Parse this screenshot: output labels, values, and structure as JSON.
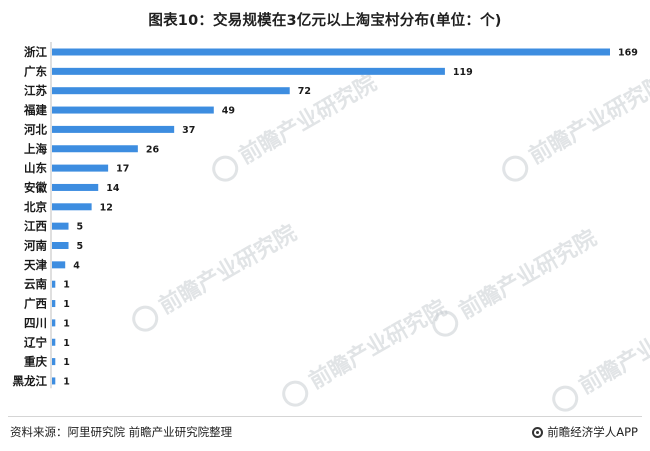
{
  "chart_data": {
    "type": "bar",
    "orientation": "horizontal",
    "title": "图表10：交易规模在3亿元以上淘宝村分布(单位：个)",
    "categories": [
      "浙江",
      "广东",
      "江苏",
      "福建",
      "河北",
      "上海",
      "山东",
      "安徽",
      "北京",
      "江西",
      "河南",
      "天津",
      "云南",
      "广西",
      "四川",
      "辽宁",
      "重庆",
      "黑龙江"
    ],
    "values": [
      169,
      119,
      72,
      49,
      37,
      26,
      17,
      14,
      12,
      5,
      5,
      4,
      1,
      1,
      1,
      1,
      1,
      1
    ],
    "xlim": [
      0,
      169
    ],
    "grid": false,
    "data_labels": true,
    "bar_color": "#3d8de0"
  },
  "watermark": "前瞻产业研究院",
  "footer": {
    "source": "资料来源：阿里研究院   前瞻产业研究院整理",
    "brand": "前瞻经济学人APP"
  }
}
